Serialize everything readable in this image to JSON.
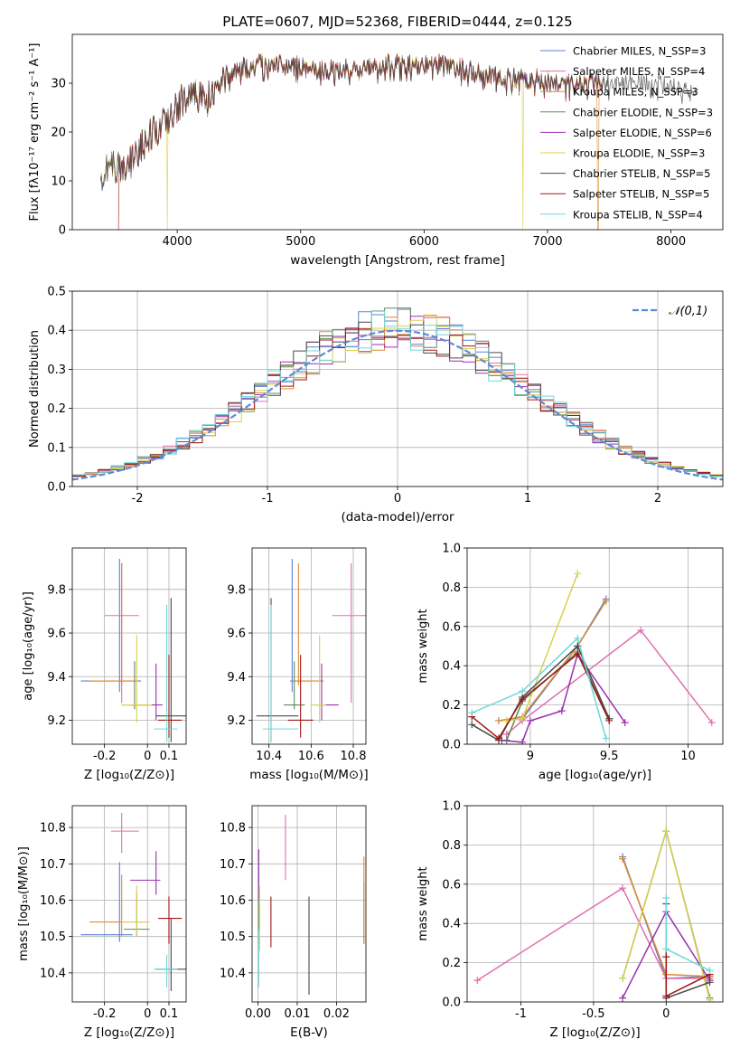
{
  "figure": {
    "title": "PLATE=0607, MJD=52368, FIBERID=0444, z=0.125",
    "colors": [
      "#5b82d4",
      "#e070b0",
      "#e08a30",
      "#5e8a5e",
      "#9b30b0",
      "#d8d050",
      "#4a4a4a",
      "#a01818",
      "#70d8d8"
    ]
  },
  "chart_data": [
    {
      "id": "spectrum",
      "type": "line",
      "xlabel": "wavelength [Angstrom, rest frame]",
      "ylabel": "Flux [fλ10⁻¹⁷ erg cm⁻² s⁻¹ A⁻¹]",
      "xlim": [
        3150,
        8420
      ],
      "ylim": [
        0,
        40
      ],
      "xticks": [
        4000,
        5000,
        6000,
        7000,
        8000
      ],
      "yticks": [
        0,
        10,
        20,
        30
      ],
      "grid": false,
      "legend": "top-right",
      "series": [
        {
          "name": "Chabrier MILES, N_SSP=3"
        },
        {
          "name": "Salpeter MILES, N_SSP=4"
        },
        {
          "name": "Kroupa MILES, N_SSP=3"
        },
        {
          "name": "Chabrier ELODIE, N_SSP=3"
        },
        {
          "name": "Salpeter ELODIE, N_SSP=6"
        },
        {
          "name": "Kroupa ELODIE, N_SSP=3"
        },
        {
          "name": "Chabrier STELIB, N_SSP=5"
        },
        {
          "name": "Salpeter STELIB, N_SSP=5"
        },
        {
          "name": "Kroupa STELIB, N_SSP=4"
        }
      ],
      "data_envelope": {
        "x": [
          3380,
          3450,
          3550,
          3650,
          3750,
          3850,
          3950,
          4050,
          4150,
          4250,
          4350,
          4500,
          4700,
          4900,
          5100,
          5300,
          5500,
          5700,
          5900,
          6100,
          6300,
          6500,
          6700,
          6900,
          7100,
          7300,
          7500,
          7700,
          7900,
          8100,
          8300
        ],
        "y": [
          11.5,
          14,
          12,
          15,
          19,
          21,
          24,
          27,
          28,
          27,
          31,
          33,
          34,
          34,
          33,
          33,
          33,
          34,
          34,
          34,
          33,
          32,
          31,
          31,
          30,
          30,
          30,
          30,
          30,
          29,
          29
        ]
      },
      "model_dropouts": [
        3520,
        3920,
        6800,
        7410
      ]
    },
    {
      "id": "residuals",
      "type": "line",
      "xlabel": "(data-model)/error",
      "ylabel": "Normed distribution",
      "xlim": [
        -2.5,
        2.5
      ],
      "ylim": [
        0,
        0.5
      ],
      "xticks": [
        -2,
        -1,
        0,
        1,
        2
      ],
      "yticks": [
        0.0,
        0.1,
        0.2,
        0.3,
        0.4,
        0.5
      ],
      "grid": true,
      "legend": "top-right",
      "reference_curve": {
        "name": "𝒩(0,1)",
        "mu": 0,
        "sigma": 1,
        "style": "dashed"
      },
      "histogram_bin_width": 0.1
    },
    {
      "id": "z-age",
      "type": "scatter",
      "xlabel": "Z [log₁₀(Z/Z⊙)]",
      "ylabel": "age  [log₁₀(age/yr)]",
      "xlim": [
        -0.35,
        0.18
      ],
      "ylim": [
        9.09,
        9.99
      ],
      "xticks": [
        -0.2,
        0.0,
        0.1
      ],
      "yticks": [
        9.2,
        9.4,
        9.6,
        9.8
      ],
      "grid": true,
      "points": [
        {
          "x": -0.13,
          "y": 9.38,
          "xerr": [
            0.18,
            0.1
          ],
          "yerr": [
            0.05,
            0.56
          ],
          "c": 0
        },
        {
          "x": -0.12,
          "y": 9.68,
          "xerr": [
            0.08,
            0.08
          ],
          "yerr": [
            0.4,
            0.24
          ],
          "c": 1
        },
        {
          "x": -0.12,
          "y": 9.38,
          "xerr": [
            0.15,
            0.07
          ],
          "yerr": [
            0.02,
            0.54
          ],
          "c": 2
        },
        {
          "x": -0.06,
          "y": 9.27,
          "xerr": [
            0.06,
            0.06
          ],
          "yerr": [
            0.02,
            0.2
          ],
          "c": 3
        },
        {
          "x": 0.04,
          "y": 9.27,
          "xerr": [
            0.12,
            0.03
          ],
          "yerr": [
            0.07,
            0.19
          ],
          "c": 4
        },
        {
          "x": -0.05,
          "y": 9.27,
          "xerr": [
            0.07,
            0.07
          ],
          "yerr": [
            0.08,
            0.32
          ],
          "c": 5
        },
        {
          "x": 0.11,
          "y": 9.22,
          "xerr": [
            0.07,
            0.09
          ],
          "yerr": [
            0.12,
            0.54
          ],
          "c": 6
        },
        {
          "x": 0.1,
          "y": 9.2,
          "xerr": [
            0.05,
            0.06
          ],
          "yerr": [
            0.08,
            0.3
          ],
          "c": 7
        },
        {
          "x": 0.09,
          "y": 9.16,
          "xerr": [
            0.06,
            0.05
          ],
          "yerr": [
            0.06,
            0.57
          ],
          "c": 8
        }
      ]
    },
    {
      "id": "mass-age",
      "type": "scatter",
      "xlabel": "mass [log₁₀(M/M⊙)]",
      "ylabel": "",
      "xlim": [
        10.32,
        10.86
      ],
      "ylim": [
        9.09,
        9.99
      ],
      "xticks": [
        10.4,
        10.6,
        10.8
      ],
      "yticks": [
        9.2,
        9.4,
        9.6,
        9.8
      ],
      "grid": true,
      "points": [
        {
          "x": 10.51,
          "y": 9.38,
          "xerr": [
            0.01,
            0.08
          ],
          "yerr": [
            0.05,
            0.56
          ],
          "c": 0
        },
        {
          "x": 10.79,
          "y": 9.68,
          "xerr": [
            0.09,
            0.09
          ],
          "yerr": [
            0.4,
            0.24
          ],
          "c": 1
        },
        {
          "x": 10.54,
          "y": 9.38,
          "xerr": [
            0.03,
            0.12
          ],
          "yerr": [
            0.02,
            0.54
          ],
          "c": 2
        },
        {
          "x": 10.52,
          "y": 9.27,
          "xerr": [
            0.05,
            0.05
          ],
          "yerr": [
            0.02,
            0.2
          ],
          "c": 3
        },
        {
          "x": 10.65,
          "y": 9.27,
          "xerr": [
            0.03,
            0.08
          ],
          "yerr": [
            0.07,
            0.19
          ],
          "c": 4
        },
        {
          "x": 10.64,
          "y": 9.27,
          "xerr": [
            0.04,
            0.03
          ],
          "yerr": [
            0.08,
            0.32
          ],
          "c": 5
        },
        {
          "x": 10.41,
          "y": 9.22,
          "xerr": [
            0.07,
            0.13
          ],
          "yerr": [
            0.12,
            0.54
          ],
          "c": 6
        },
        {
          "x": 10.55,
          "y": 9.2,
          "xerr": [
            0.06,
            0.06
          ],
          "yerr": [
            0.08,
            0.3
          ],
          "c": 7
        },
        {
          "x": 10.41,
          "y": 9.16,
          "xerr": [
            0.04,
            0.13
          ],
          "yerr": [
            0.06,
            0.57
          ],
          "c": 8
        }
      ]
    },
    {
      "id": "age-weight",
      "type": "line",
      "xlabel": "age  [log₁₀(age/yr)]",
      "ylabel": "mass weight",
      "xlim": [
        8.6,
        10.22
      ],
      "ylim": [
        0,
        1
      ],
      "xticks": [
        9.0,
        9.5,
        10.0
      ],
      "yticks": [
        0.0,
        0.2,
        0.4,
        0.6,
        0.8,
        1.0
      ],
      "grid": true,
      "series": [
        {
          "c": 0,
          "x": [
            8.8,
            8.95,
            9.3,
            9.48
          ],
          "y": [
            0.12,
            0.13,
            0.5,
            0.74
          ]
        },
        {
          "c": 1,
          "x": [
            8.85,
            8.95,
            9.7,
            10.15
          ],
          "y": [
            0.05,
            0.12,
            0.58,
            0.11
          ]
        },
        {
          "c": 2,
          "x": [
            8.8,
            8.95,
            9.3,
            9.48
          ],
          "y": [
            0.12,
            0.14,
            0.5,
            0.73
          ]
        },
        {
          "c": 3,
          "x": [
            8.85,
            8.95,
            9.3,
            9.5
          ],
          "y": [
            0.02,
            0.22,
            0.47,
            0.13
          ]
        },
        {
          "c": 4,
          "x": [
            8.82,
            8.95,
            9.0,
            9.2,
            9.3,
            9.6
          ],
          "y": [
            0.02,
            0.01,
            0.12,
            0.17,
            0.46,
            0.11
          ]
        },
        {
          "c": 5,
          "x": [
            8.85,
            8.95,
            9.3
          ],
          "y": [
            0.12,
            0.13,
            0.87
          ]
        },
        {
          "c": 6,
          "x": [
            8.63,
            8.8,
            8.95,
            9.3,
            9.5
          ],
          "y": [
            0.1,
            0.02,
            0.24,
            0.5,
            0.13
          ]
        },
        {
          "c": 7,
          "x": [
            8.63,
            8.8,
            8.95,
            9.3,
            9.5
          ],
          "y": [
            0.14,
            0.03,
            0.23,
            0.46,
            0.12
          ]
        },
        {
          "c": 8,
          "x": [
            8.63,
            8.95,
            9.3,
            9.48
          ],
          "y": [
            0.16,
            0.27,
            0.54,
            0.03
          ]
        }
      ]
    },
    {
      "id": "z-mass",
      "type": "scatter",
      "xlabel": "Z [log₁₀(Z/Z⊙)]",
      "ylabel": "mass [log₁₀(M/M⊙)]",
      "xlim": [
        -0.35,
        0.18
      ],
      "ylim": [
        10.32,
        10.86
      ],
      "xticks": [
        -0.2,
        0.0,
        0.1
      ],
      "yticks": [
        10.4,
        10.5,
        10.6,
        10.7,
        10.8
      ],
      "grid": true,
      "points": [
        {
          "x": -0.13,
          "y": 10.505,
          "xerr": [
            0.18,
            0.06
          ],
          "yerr": [
            0.02,
            0.2
          ],
          "c": 0
        },
        {
          "x": -0.12,
          "y": 10.79,
          "xerr": [
            0.05,
            0.08
          ],
          "yerr": [
            0.06,
            0.05
          ],
          "c": 1
        },
        {
          "x": -0.12,
          "y": 10.54,
          "xerr": [
            0.15,
            0.12
          ],
          "yerr": [
            0.04,
            0.13
          ],
          "c": 2
        },
        {
          "x": -0.05,
          "y": 10.52,
          "xerr": [
            0.06,
            0.06
          ],
          "yerr": [
            0.02,
            0.1
          ],
          "c": 3
        },
        {
          "x": 0.04,
          "y": 10.655,
          "xerr": [
            0.12,
            0.02
          ],
          "yerr": [
            0.04,
            0.08
          ],
          "c": 4
        },
        {
          "x": -0.05,
          "y": 10.54,
          "xerr": [
            0.07,
            0.06
          ],
          "yerr": [
            0.04,
            0.1
          ],
          "c": 5
        },
        {
          "x": 0.11,
          "y": 10.41,
          "xerr": [
            0.07,
            0.09
          ],
          "yerr": [
            0.06,
            0.14
          ],
          "c": 6
        },
        {
          "x": 0.1,
          "y": 10.55,
          "xerr": [
            0.05,
            0.06
          ],
          "yerr": [
            0.07,
            0.06
          ],
          "c": 7
        },
        {
          "x": 0.09,
          "y": 10.41,
          "xerr": [
            0.06,
            0.05
          ],
          "yerr": [
            0.05,
            0.04
          ],
          "c": 8
        }
      ]
    },
    {
      "id": "ebv-mass",
      "type": "scatter",
      "xlabel": "E(B-V)",
      "ylabel": "",
      "xlim": [
        -0.0015,
        0.0275
      ],
      "ylim": [
        10.32,
        10.86
      ],
      "xticks": [
        0.0,
        0.01,
        0.02
      ],
      "yticks": [
        10.4,
        10.5,
        10.6,
        10.7,
        10.8
      ],
      "grid": true,
      "points": [
        {
          "x": 0.027,
          "y": 10.58,
          "yerr": [
            0.1,
            0.07
          ],
          "c": 0
        },
        {
          "x": 0.007,
          "y": 10.745,
          "yerr": [
            0.09,
            0.09
          ],
          "c": 1
        },
        {
          "x": 0.027,
          "y": 10.6,
          "yerr": [
            0.12,
            0.12
          ],
          "c": 2
        },
        {
          "x": 0.0002,
          "y": 10.58,
          "yerr": [
            0.1,
            0.06
          ],
          "c": 3
        },
        {
          "x": 0.0002,
          "y": 10.68,
          "yerr": [
            0.08,
            0.06
          ],
          "c": 4
        },
        {
          "x": 0.0004,
          "y": 10.55,
          "yerr": [
            0.09,
            0.09
          ],
          "c": 5
        },
        {
          "x": 0.013,
          "y": 10.47,
          "yerr": [
            0.13,
            0.14
          ],
          "c": 6
        },
        {
          "x": 0.0033,
          "y": 10.54,
          "yerr": [
            0.07,
            0.07
          ],
          "c": 7
        },
        {
          "x": 0.0002,
          "y": 10.45,
          "yerr": [
            0.09,
            0.07
          ],
          "c": 8
        }
      ]
    },
    {
      "id": "z-weight",
      "type": "line",
      "xlabel": "Z [log₁₀(Z/Z⊙)]",
      "ylabel": "mass weight",
      "xlim": [
        -1.37,
        0.39
      ],
      "ylim": [
        0,
        1
      ],
      "xticks": [
        -1.0,
        -0.5,
        0.0
      ],
      "yticks": [
        0.0,
        0.2,
        0.4,
        0.6,
        0.8,
        1.0
      ],
      "grid": true,
      "series": [
        {
          "c": 0,
          "x": [
            -0.3,
            0.0,
            0.3
          ],
          "y": [
            0.74,
            0.12,
            0.13
          ]
        },
        {
          "c": 1,
          "x": [
            -1.3,
            -0.3,
            0.0,
            0.3
          ],
          "y": [
            0.11,
            0.58,
            0.12,
            0.12
          ]
        },
        {
          "c": 2,
          "x": [
            -0.3,
            0.0,
            0.3
          ],
          "y": [
            0.73,
            0.14,
            0.13
          ]
        },
        {
          "c": 3,
          "x": [
            -0.3,
            0.0,
            0.3
          ],
          "y": [
            0.12,
            0.87,
            0.02
          ]
        },
        {
          "c": 4,
          "x": [
            -0.3,
            0.0,
            0.3
          ],
          "y": [
            0.02,
            0.46,
            0.11
          ]
        },
        {
          "c": 5,
          "x": [
            -0.3,
            0.0,
            0.3
          ],
          "y": [
            0.12,
            0.87,
            0.01
          ]
        },
        {
          "c": 6,
          "x": [
            0.0,
            0.0,
            0.3
          ],
          "y": [
            0.5,
            0.02,
            0.1
          ]
        },
        {
          "c": 7,
          "x": [
            0.0,
            0.0,
            0.3
          ],
          "y": [
            0.23,
            0.03,
            0.14
          ]
        },
        {
          "c": 8,
          "x": [
            0.0,
            0.0,
            0.3
          ],
          "y": [
            0.53,
            0.27,
            0.16
          ]
        }
      ]
    }
  ]
}
